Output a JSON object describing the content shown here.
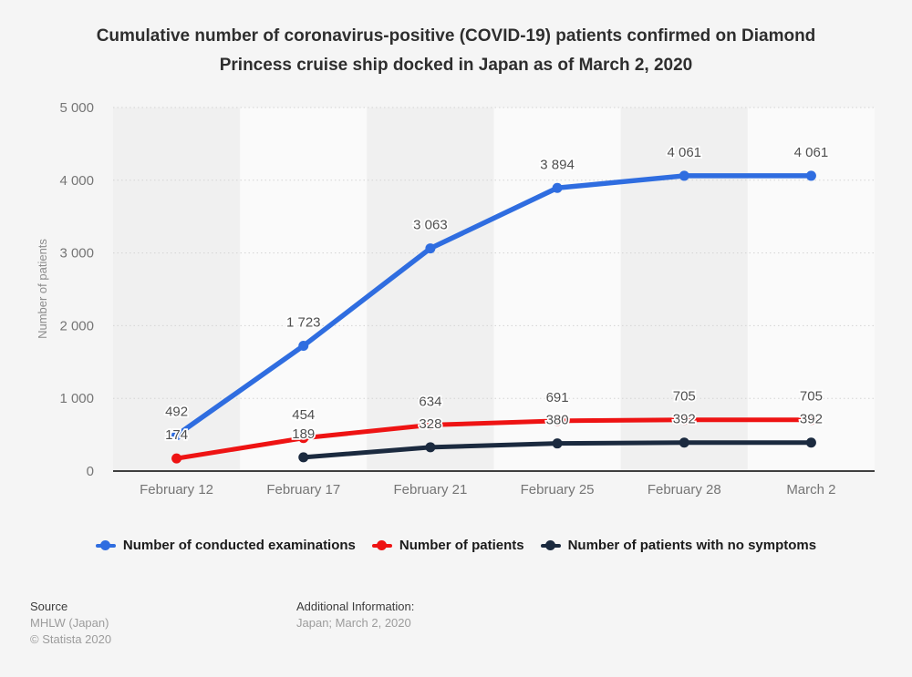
{
  "chart_data": {
    "type": "line",
    "title": "Cumulative number of coronavirus-positive (COVID-19) patients confirmed on Diamond Princess cruise ship docked in Japan as of March 2, 2020",
    "categories": [
      "February 12",
      "February 17",
      "February 21",
      "February 25",
      "February 28",
      "March 2"
    ],
    "series": [
      {
        "name": "Number of conducted examinations",
        "color": "#2f6de0",
        "values": [
          492,
          1723,
          3063,
          3894,
          4061,
          4061
        ]
      },
      {
        "name": "Number of patients",
        "color": "#ee1313",
        "values": [
          174,
          454,
          634,
          691,
          705,
          705
        ]
      },
      {
        "name": "Number of patients with no symptoms",
        "color": "#1b2a3f",
        "values": [
          null,
          189,
          328,
          380,
          392,
          392
        ]
      }
    ],
    "xlabel": "",
    "ylabel": "Number of patients",
    "ylim": [
      0,
      5000
    ],
    "ytick_step": 1000,
    "ytick_labels": [
      "0",
      "1 000",
      "2 000",
      "3 000",
      "4 000",
      "5 000"
    ],
    "grid": "horizontal-dotted",
    "plot_band_colors": [
      "#f0f0f0",
      "#fafafa"
    ],
    "legend_position": "bottom"
  },
  "footer": {
    "source_label": "Source",
    "source_value": "MHLW (Japan)",
    "copyright": "© Statista 2020",
    "additional_label": "Additional Information:",
    "additional_value": "Japan; March 2, 2020"
  }
}
